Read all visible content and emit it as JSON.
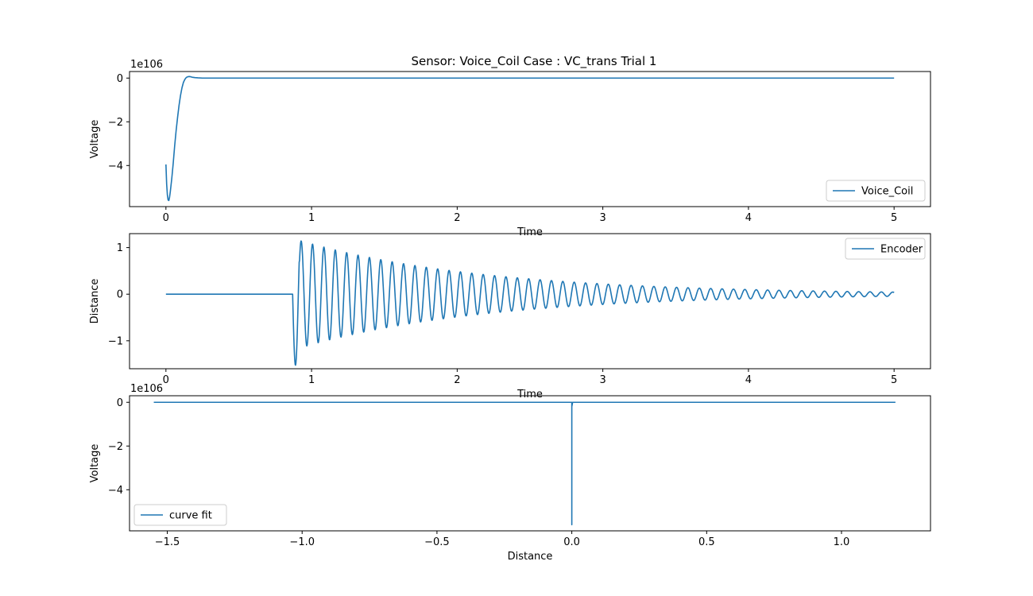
{
  "figure": {
    "title": "Sensor: Voice_Coil Case : VC_trans Trial 1"
  },
  "colors": {
    "series": "#1f77b4",
    "axes": "#000000",
    "background": "#ffffff",
    "legend_border": "#cccccc"
  },
  "chart_data": [
    {
      "type": "line",
      "title": "Sensor: Voice_Coil Case : VC_trans Trial 1",
      "xlabel": "Time",
      "ylabel": "Voltage",
      "offset_text": "1e106",
      "xlim": [
        -0.25,
        5.25
      ],
      "ylim": [
        -5.88,
        0.3
      ],
      "xticks": [
        0,
        1,
        2,
        3,
        4,
        5
      ],
      "xtick_labels": [
        "0",
        "1",
        "2",
        "3",
        "4",
        "5"
      ],
      "yticks": [
        0,
        -2,
        -4
      ],
      "ytick_labels": [
        "0",
        "−2",
        "−4"
      ],
      "grid": false,
      "legend_position": "lower-right",
      "series": [
        {
          "name": "Voice_Coil",
          "x": [
            0,
            0.005,
            0.01,
            0.015,
            0.02,
            0.025,
            0.03,
            0.04,
            0.05,
            0.06,
            0.07,
            0.08,
            0.09,
            0.1,
            0.11,
            0.12,
            0.13,
            0.14,
            0.15,
            0.16,
            0.17,
            0.18,
            0.2,
            0.22,
            0.25,
            0.3,
            0.4,
            1,
            2,
            3,
            4,
            5
          ],
          "y": [
            -3.95,
            -4.85,
            -5.35,
            -5.58,
            -5.6,
            -5.45,
            -5.2,
            -4.6,
            -3.9,
            -3.1,
            -2.4,
            -1.8,
            -1.25,
            -0.8,
            -0.45,
            -0.2,
            -0.06,
            0.03,
            0.06,
            0.07,
            0.06,
            0.04,
            0.02,
            0.01,
            0.0,
            0.0,
            0.0,
            0.0,
            0.0,
            0.0,
            0.0,
            0.0
          ]
        }
      ]
    },
    {
      "type": "line",
      "xlabel": "Time",
      "ylabel": "Distance",
      "xlim": [
        -0.25,
        5.25
      ],
      "ylim": [
        -1.6,
        1.3
      ],
      "xticks": [
        0,
        1,
        2,
        3,
        4,
        5
      ],
      "xtick_labels": [
        "0",
        "1",
        "2",
        "3",
        "4",
        "5"
      ],
      "yticks": [
        1,
        0,
        -1
      ],
      "ytick_labels": [
        "1",
        "0",
        "−1"
      ],
      "grid": false,
      "legend_position": "upper-right",
      "series": [
        {
          "name": "Encoder",
          "signal": {
            "x_start": 0,
            "x_end": 5,
            "onset": 0.87,
            "first_trough": -1.55,
            "first_peak": 1.2,
            "peak_amplitude_at_4s": 0.1,
            "frequency_hz": 12.8,
            "steady_value": 0
          }
        }
      ]
    },
    {
      "type": "line",
      "xlabel": "Distance",
      "ylabel": "Voltage",
      "offset_text": "1e106",
      "xlim": [
        -1.64,
        1.33
      ],
      "ylim": [
        -5.88,
        0.3
      ],
      "xticks": [
        -1.5,
        -1.0,
        -0.5,
        0.0,
        0.5,
        1.0
      ],
      "xtick_labels": [
        "−1.5",
        "−1.0",
        "−0.5",
        "0.0",
        "0.5",
        "1.0"
      ],
      "yticks": [
        0,
        -2,
        -4
      ],
      "ytick_labels": [
        "0",
        "−2",
        "−4"
      ],
      "grid": false,
      "legend_position": "lower-left",
      "series": [
        {
          "name": "curve fit",
          "x": [
            -1.55,
            -1.0,
            -0.5,
            -0.01,
            -0.003,
            0.0,
            0.0,
            0.0,
            0.0,
            0.0,
            0.0,
            0.003,
            0.01,
            0.5,
            1.0,
            1.2
          ],
          "y": [
            0.0,
            0.0,
            0.0,
            0.0,
            0.0,
            0.0,
            -0.5,
            -3.95,
            -5.6,
            -4.6,
            -0.2,
            0.0,
            0.0,
            0.0,
            0.0,
            0.0
          ]
        }
      ]
    }
  ]
}
